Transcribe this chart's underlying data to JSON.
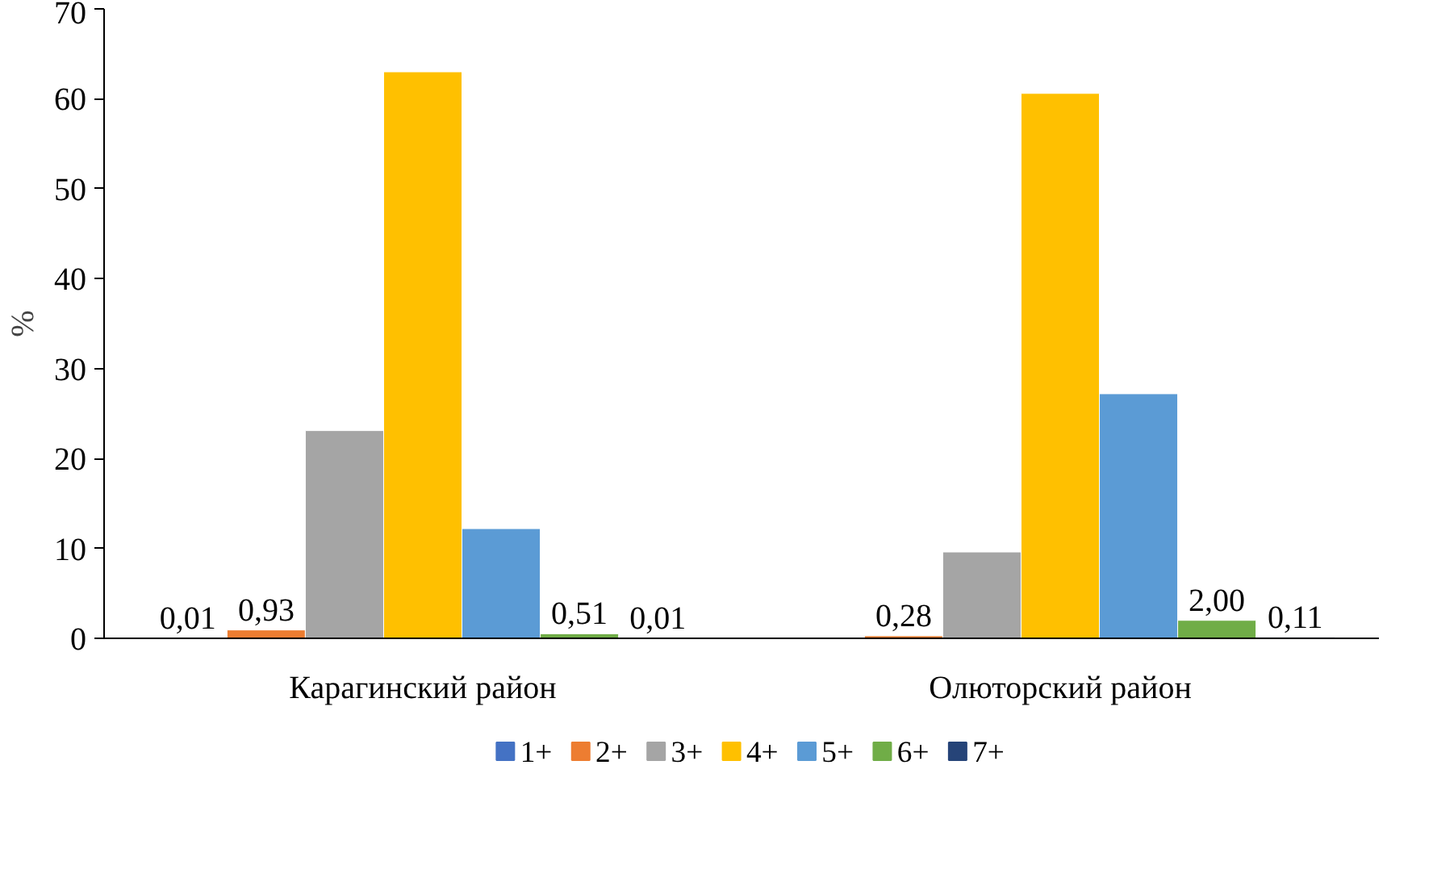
{
  "chart_data": {
    "type": "bar",
    "ylabel": "%",
    "categories": [
      "Карагинский район",
      "Олюторский район"
    ],
    "ylim": [
      0,
      70
    ],
    "yticks": [
      0,
      10,
      20,
      30,
      40,
      50,
      60,
      70
    ],
    "grid": false,
    "legend": "bottom",
    "series": [
      {
        "name": "1+",
        "color": "#4472c4",
        "values": [
          0.01,
          null
        ],
        "value_labels": [
          "0,01",
          null
        ]
      },
      {
        "name": "2+",
        "color": "#ed7d31",
        "values": [
          0.93,
          0.28
        ],
        "value_labels": [
          "0,93",
          "0,28"
        ]
      },
      {
        "name": "3+",
        "color": "#a5a5a5",
        "values": [
          23.1,
          9.6
        ],
        "value_labels": [
          null,
          null
        ]
      },
      {
        "name": "4+",
        "color": "#ffc000",
        "values": [
          63.0,
          60.6
        ],
        "value_labels": [
          null,
          null
        ]
      },
      {
        "name": "5+",
        "color": "#5b9bd5",
        "values": [
          12.2,
          27.2
        ],
        "value_labels": [
          null,
          null
        ]
      },
      {
        "name": "6+",
        "color": "#70ad47",
        "values": [
          0.51,
          2.0
        ],
        "value_labels": [
          "0,51",
          "2,00"
        ]
      },
      {
        "name": "7+",
        "color": "#264478",
        "values": [
          0.01,
          0.11
        ],
        "value_labels": [
          "0,01",
          "0,11"
        ]
      }
    ]
  }
}
